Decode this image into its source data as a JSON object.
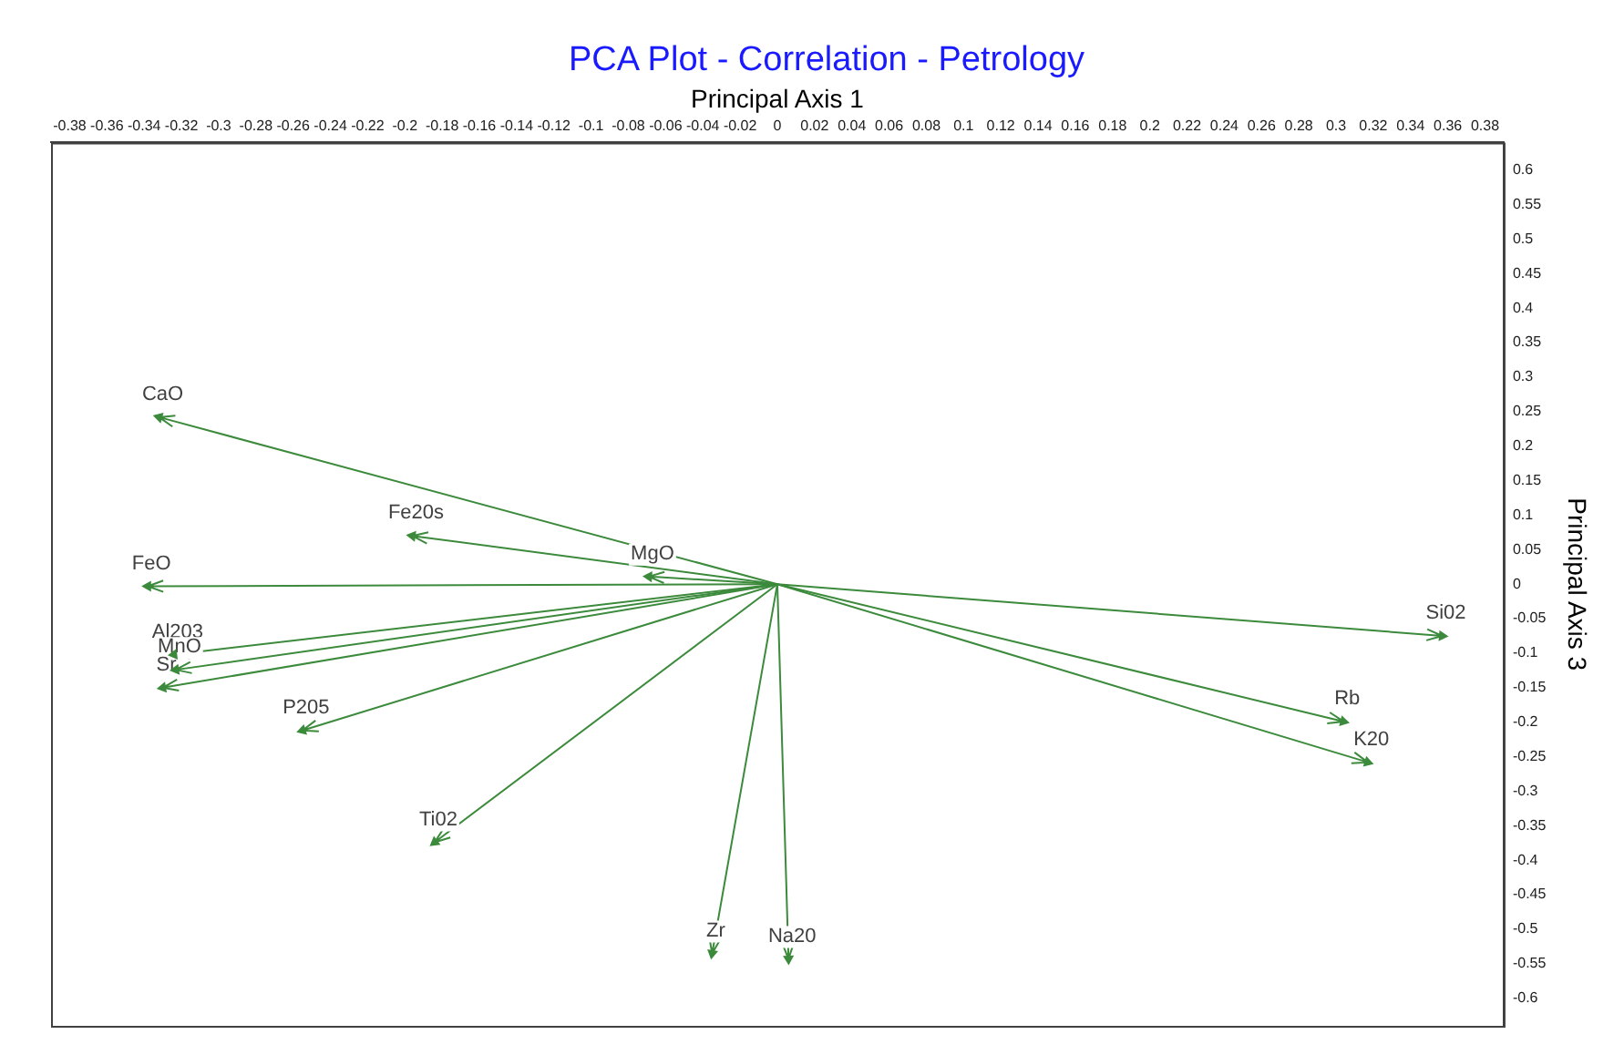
{
  "chart_data": {
    "type": "scatter",
    "title": "PCA Plot - Correlation - Petrology",
    "xlabel": "Principal Axis 1",
    "ylabel": "Principal Axis 3",
    "xlim": [
      -0.39,
      0.39
    ],
    "ylim": [
      -0.64,
      0.64
    ],
    "xticks": [
      -0.38,
      -0.36,
      -0.34,
      -0.32,
      -0.3,
      -0.28,
      -0.26,
      -0.24,
      -0.22,
      -0.2,
      -0.18,
      -0.16,
      -0.14,
      -0.12,
      -0.1,
      -0.08,
      -0.06,
      -0.04,
      -0.02,
      0,
      0.02,
      0.04,
      0.06,
      0.08,
      0.1,
      0.12,
      0.14,
      0.16,
      0.18,
      0.2,
      0.22,
      0.24,
      0.26,
      0.28,
      0.3,
      0.32,
      0.34,
      0.36,
      0.38
    ],
    "yticks": [
      -0.6,
      -0.55,
      -0.5,
      -0.45,
      -0.4,
      -0.35,
      -0.3,
      -0.25,
      -0.2,
      -0.15,
      -0.1,
      -0.05,
      0,
      0.05,
      0.1,
      0.15,
      0.2,
      0.25,
      0.3,
      0.35,
      0.4,
      0.45,
      0.5,
      0.55,
      0.6
    ],
    "grid": false,
    "legend": false,
    "marker": "triangle",
    "series": [
      {
        "color": "#3c8a3c",
        "x": [
          -0.332,
          -0.196,
          -0.069,
          -0.338,
          -0.324,
          -0.323,
          -0.33,
          -0.255,
          -0.184,
          -0.035,
          0.006,
          0.357,
          0.304,
          0.317
        ],
        "values": [
          0.242,
          0.07,
          0.011,
          -0.003,
          -0.102,
          -0.124,
          -0.15,
          -0.212,
          -0.374,
          -0.535,
          -0.543,
          -0.075,
          -0.199,
          -0.258
        ]
      }
    ],
    "annotations": [
      {
        "text": "CaO",
        "x": -0.332,
        "y": 0.242
      },
      {
        "text": "Fe20s",
        "x": -0.196,
        "y": 0.07
      },
      {
        "text": "MgO",
        "x": -0.069,
        "y": 0.011
      },
      {
        "text": "FeO",
        "x": -0.338,
        "y": -0.003
      },
      {
        "text": "Al203",
        "x": -0.324,
        "y": -0.102
      },
      {
        "text": "MnO",
        "x": -0.323,
        "y": -0.124
      },
      {
        "text": "Sr",
        "x": -0.33,
        "y": -0.15
      },
      {
        "text": "P205",
        "x": -0.255,
        "y": -0.212
      },
      {
        "text": "Ti02",
        "x": -0.184,
        "y": -0.374
      },
      {
        "text": "Zr",
        "x": -0.035,
        "y": -0.535
      },
      {
        "text": "Na20",
        "x": 0.006,
        "y": -0.543
      },
      {
        "text": "Si02",
        "x": 0.357,
        "y": -0.075
      },
      {
        "text": "Rb",
        "x": 0.304,
        "y": -0.199
      },
      {
        "text": "K20",
        "x": 0.317,
        "y": -0.258
      }
    ]
  }
}
